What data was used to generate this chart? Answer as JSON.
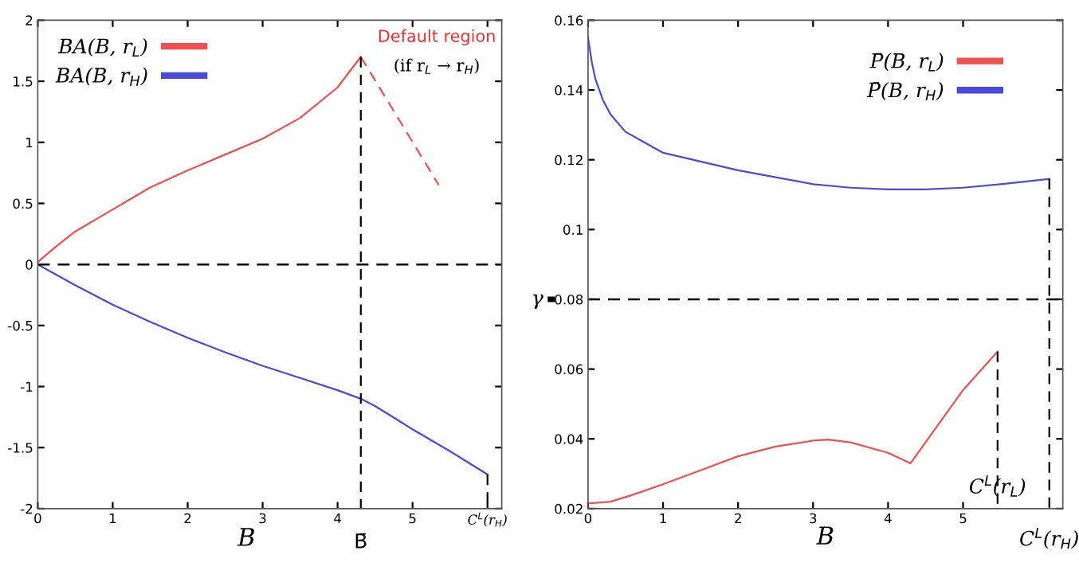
{
  "chart_data": [
    {
      "type": "line",
      "xlabel": "B",
      "xlim": [
        0,
        6.19
      ],
      "ylim": [
        -2,
        2
      ],
      "xticks": [
        0,
        1,
        2,
        3,
        4,
        5,
        {
          "value": 6,
          "label": "C$^{L}$(r$_{H}$)"
        }
      ],
      "yticks": [
        -2,
        -1.5,
        -1,
        -0.5,
        0,
        0.5,
        1,
        1.5,
        2
      ],
      "legend": "top left",
      "grid": false,
      "marker": "none",
      "series": [
        {
          "name": "BA(B, r$_{L}$)",
          "color": "#f05050",
          "line_style": "solid",
          "x": [
            0,
            0.25,
            0.5,
            1,
            1.5,
            2,
            2.5,
            3,
            3.5,
            4,
            4.31
          ],
          "values": [
            0.02,
            0.15,
            0.27,
            0.45,
            0.63,
            0.77,
            0.9,
            1.03,
            1.2,
            1.45,
            1.7
          ]
        },
        {
          "color": "#f05050",
          "line_style": "dashed",
          "x": [
            4.31,
            5.35
          ],
          "values": [
            1.7,
            0.65
          ]
        },
        {
          "name": "BA(B, r$_{H}$)",
          "color": "#4a4ade",
          "line_style": "solid",
          "x": [
            0,
            0.5,
            1,
            1.5,
            2,
            2.5,
            3,
            3.5,
            4,
            4.31,
            4.5,
            5,
            5.5,
            6
          ],
          "values": [
            0,
            -0.17,
            -0.33,
            -0.47,
            -0.6,
            -0.72,
            -0.83,
            -0.93,
            -1.03,
            -1.1,
            -1.16,
            -1.35,
            -1.53,
            -1.72
          ]
        },
        {
          "color": "#000000",
          "line_style": "dashed",
          "x": [
            4.31,
            4.31
          ],
          "values": [
            1.7,
            -2
          ]
        },
        {
          "color": "#000000",
          "line_style": "dashed",
          "x": [
            6,
            6
          ],
          "values": [
            -1.72,
            -2
          ]
        }
      ],
      "ref_lines": [
        {
          "axis": "y",
          "value": 0,
          "color": "#000000",
          "line_style": "dashed"
        }
      ],
      "annotations": [
        "Default region",
        "(if r$_{L}$ → r$_{H}$)",
        {
          "text": "B̄",
          "x": 4.31,
          "y": -2
        }
      ]
    },
    {
      "type": "line",
      "xlabel": "B",
      "xlim": [
        0,
        6.33
      ],
      "ylim": [
        0.02,
        0.16
      ],
      "xticks": [
        0,
        1,
        2,
        3,
        4,
        5
      ],
      "yticks": [
        0.02,
        0.04,
        0.06,
        {
          "value": 0.08,
          "label": "0.08"
        },
        0.1,
        0.12,
        0.14,
        0.16
      ],
      "legend": "top right",
      "grid": false,
      "marker": "none",
      "series": [
        {
          "name": "P̄(B, r$_{L}$)",
          "color": "#f05050",
          "line_style": "solid",
          "x": [
            0,
            0.3,
            0.6,
            1,
            1.5,
            2,
            2.5,
            3,
            3.2,
            3.5,
            4,
            4.3,
            4.6,
            5,
            5.46
          ],
          "values": [
            0.0215,
            0.022,
            0.024,
            0.027,
            0.031,
            0.035,
            0.0378,
            0.0395,
            0.0398,
            0.039,
            0.036,
            0.033,
            0.042,
            0.054,
            0.065
          ]
        },
        {
          "name": "P̄(B, r$_{H}$)",
          "color": "#4a4ade",
          "line_style": "solid",
          "x": [
            0,
            0.05,
            0.1,
            0.2,
            0.3,
            0.5,
            0.75,
            1,
            1.5,
            2,
            2.5,
            3,
            3.5,
            4,
            4.5,
            5,
            5.5,
            6.15
          ],
          "values": [
            0.155,
            0.148,
            0.143,
            0.137,
            0.133,
            0.128,
            0.125,
            0.122,
            0.1195,
            0.117,
            0.115,
            0.113,
            0.112,
            0.1115,
            0.1115,
            0.112,
            0.113,
            0.1145
          ]
        },
        {
          "color": "#000000",
          "line_style": "dashed",
          "x": [
            5.46,
            5.46
          ],
          "values": [
            0.065,
            0.02
          ]
        },
        {
          "color": "#000000",
          "line_style": "dashed",
          "x": [
            6.15,
            6.15
          ],
          "values": [
            0.1145,
            0.02
          ]
        }
      ],
      "ref_lines": [
        {
          "axis": "y",
          "value": 0.08,
          "label": "γ",
          "color": "#000000",
          "line_style": "dashed"
        }
      ],
      "annotations": [
        {
          "text": "C$^{L}$(r$_{L}$)",
          "x": 5.46,
          "y": 0.02
        },
        {
          "text": "C$^{L}$(r$_{H}$)",
          "x": 6.15,
          "y": 0.02
        }
      ]
    }
  ]
}
